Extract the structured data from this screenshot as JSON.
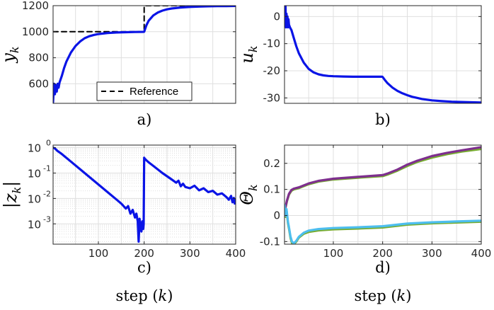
{
  "chart_data": [
    {
      "id": "a",
      "type": "line",
      "caption": "a)",
      "ylabel": "y",
      "ylabel_sub": "k",
      "xlim": [
        1,
        400
      ],
      "ylim": [
        450,
        1200
      ],
      "yscale": "linear",
      "xticks": [],
      "yticks": [
        600,
        800,
        1000,
        1200
      ],
      "ytick_labels": [
        "600",
        "800",
        "1000",
        "1200"
      ],
      "grid": true,
      "legend": {
        "position": "bottom-center",
        "entries": [
          "Reference"
        ]
      },
      "series": [
        {
          "name": "Reference",
          "style": "dashed",
          "color": "#000000",
          "x": [
            1,
            200,
            200,
            400
          ],
          "y": [
            1000,
            1000,
            1200,
            1200
          ]
        },
        {
          "name": "y_k",
          "style": "solid",
          "color": "#0a14e6",
          "x": [
            1,
            3,
            5,
            7,
            9,
            11,
            13,
            15,
            20,
            25,
            30,
            40,
            50,
            60,
            70,
            80,
            90,
            100,
            120,
            140,
            160,
            180,
            199,
            200,
            205,
            210,
            220,
            230,
            240,
            250,
            260,
            280,
            300,
            320,
            340,
            360,
            380,
            400
          ],
          "y": [
            460,
            600,
            520,
            590,
            540,
            600,
            570,
            610,
            660,
            720,
            770,
            840,
            890,
            925,
            950,
            965,
            975,
            982,
            990,
            994,
            996,
            998,
            999,
            1000,
            1050,
            1085,
            1125,
            1148,
            1162,
            1172,
            1178,
            1186,
            1190,
            1193,
            1195,
            1196,
            1197,
            1198
          ]
        }
      ]
    },
    {
      "id": "b",
      "type": "line",
      "caption": "b)",
      "ylabel": "u",
      "ylabel_sub": "k",
      "xlim": [
        1,
        400
      ],
      "ylim": [
        -32,
        4
      ],
      "yscale": "linear",
      "xticks": [],
      "yticks": [
        -30,
        -20,
        -10,
        0
      ],
      "ytick_labels": [
        "-30",
        "-20",
        "-10",
        "0"
      ],
      "grid": true,
      "series": [
        {
          "name": "u_k",
          "style": "solid",
          "color": "#0a14e6",
          "x": [
            1,
            2,
            3,
            4,
            5,
            6,
            7,
            8,
            9,
            10,
            12,
            15,
            20,
            25,
            30,
            40,
            50,
            60,
            70,
            80,
            90,
            100,
            120,
            140,
            160,
            180,
            199,
            200,
            205,
            210,
            220,
            230,
            240,
            250,
            260,
            270,
            280,
            300,
            320,
            340,
            360,
            380,
            400
          ],
          "y": [
            3,
            -2,
            4,
            -4,
            1,
            -3,
            0,
            -4,
            -1,
            -3,
            -4,
            -5,
            -8,
            -11,
            -13.5,
            -17,
            -19.3,
            -20.6,
            -21.3,
            -21.7,
            -21.9,
            -22.0,
            -22.1,
            -22.2,
            -22.2,
            -22.2,
            -22.2,
            -22.3,
            -23.5,
            -24.6,
            -26.2,
            -27.4,
            -28.3,
            -29,
            -29.6,
            -30.0,
            -30.4,
            -30.9,
            -31.2,
            -31.4,
            -31.5,
            -31.6,
            -31.7
          ]
        }
      ]
    },
    {
      "id": "c",
      "type": "line",
      "caption": "c)",
      "ylabel": "|z",
      "ylabel_sub": "k",
      "ylabel_post": "|",
      "xlabel": "step",
      "xlabel_var": "k",
      "xlim": [
        1,
        400
      ],
      "ylim_log10": [
        -3.8,
        0.1
      ],
      "yscale": "log",
      "xticks": [
        100,
        200,
        300,
        400
      ],
      "xtick_labels": [
        "100",
        "200",
        "300",
        "400"
      ],
      "yticks_log10": [
        -3,
        -2,
        -1,
        0
      ],
      "ytick_labels": [
        "10",
        "10",
        "10",
        "10"
      ],
      "ytick_exponents": [
        "-3",
        "-2",
        "-1",
        "0"
      ],
      "grid": true,
      "series": [
        {
          "name": "|z_k|",
          "style": "solid",
          "color": "#0a14e6",
          "x": [
            1,
            5,
            10,
            20,
            40,
            60,
            80,
            100,
            120,
            140,
            150,
            160,
            165,
            170,
            175,
            180,
            183,
            186,
            188,
            190,
            192,
            194,
            196,
            198,
            199,
            200,
            202,
            205,
            210,
            220,
            240,
            260,
            270,
            275,
            280,
            285,
            290,
            300,
            310,
            320,
            330,
            340,
            350,
            360,
            370,
            380,
            385,
            390,
            393,
            396,
            398,
            400
          ],
          "y_log10": [
            0,
            -0.03,
            -0.12,
            -0.25,
            -0.55,
            -0.85,
            -1.15,
            -1.45,
            -1.75,
            -2.05,
            -2.2,
            -2.4,
            -2.3,
            -2.6,
            -2.45,
            -2.75,
            -2.6,
            -2.9,
            -3.7,
            -2.8,
            -3.1,
            -3.3,
            -2.9,
            -3.2,
            -3.0,
            -0.4,
            -0.45,
            -0.5,
            -0.58,
            -0.72,
            -1.0,
            -1.25,
            -1.38,
            -1.3,
            -1.52,
            -1.42,
            -1.55,
            -1.6,
            -1.5,
            -1.68,
            -1.6,
            -1.75,
            -1.7,
            -1.85,
            -1.8,
            -1.95,
            -2.05,
            -1.9,
            -2.15,
            -1.98,
            -2.2,
            -2.05
          ]
        }
      ]
    },
    {
      "id": "d",
      "type": "line",
      "caption": "d)",
      "ylabel": "Θ",
      "ylabel_sub": "k",
      "xlabel": "step",
      "xlabel_var": "k",
      "xlim": [
        1,
        400
      ],
      "ylim": [
        -0.11,
        0.27
      ],
      "yscale": "linear",
      "xticks": [
        100,
        200,
        300,
        400
      ],
      "xtick_labels": [
        "100",
        "200",
        "300",
        "400"
      ],
      "yticks": [
        -0.1,
        0,
        0.1,
        0.2
      ],
      "ytick_labels": [
        "-0.1",
        "0",
        "0.1",
        "0.2"
      ],
      "grid": true,
      "series": [
        {
          "name": "theta-upper-1",
          "style": "solid",
          "color": "#77ac30",
          "x": [
            1,
            3,
            6,
            10,
            15,
            20,
            30,
            50,
            70,
            100,
            150,
            200,
            210,
            230,
            250,
            270,
            300,
            330,
            360,
            400
          ],
          "y": [
            0,
            0.03,
            0.055,
            0.08,
            0.095,
            0.1,
            0.105,
            0.12,
            0.13,
            0.138,
            0.145,
            0.151,
            0.157,
            0.172,
            0.19,
            0.205,
            0.222,
            0.235,
            0.245,
            0.255
          ]
        },
        {
          "name": "theta-upper-2",
          "style": "solid",
          "color": "#7e2f8e",
          "x": [
            1,
            3,
            6,
            10,
            15,
            20,
            30,
            50,
            70,
            100,
            150,
            200,
            210,
            230,
            250,
            270,
            300,
            330,
            360,
            400
          ],
          "y": [
            0,
            0.032,
            0.058,
            0.083,
            0.098,
            0.103,
            0.108,
            0.123,
            0.133,
            0.141,
            0.148,
            0.155,
            0.161,
            0.176,
            0.195,
            0.21,
            0.228,
            0.24,
            0.25,
            0.262
          ]
        },
        {
          "name": "theta-lower-1",
          "style": "solid",
          "color": "#77ac30",
          "x": [
            1,
            3,
            5,
            8,
            10,
            13,
            16,
            20,
            25,
            30,
            40,
            50,
            70,
            100,
            150,
            200,
            250,
            300,
            350,
            400
          ],
          "y": [
            0.03,
            -0.005,
            0.02,
            -0.03,
            -0.05,
            -0.085,
            -0.105,
            -0.11,
            -0.1,
            -0.085,
            -0.07,
            -0.063,
            -0.057,
            -0.053,
            -0.05,
            -0.046,
            -0.035,
            -0.03,
            -0.027,
            -0.024
          ]
        },
        {
          "name": "theta-lower-2",
          "style": "solid",
          "color": "#4dbeee",
          "x": [
            1,
            3,
            5,
            8,
            10,
            13,
            16,
            20,
            25,
            30,
            40,
            50,
            70,
            100,
            150,
            200,
            250,
            300,
            350,
            400
          ],
          "y": [
            0.04,
            0.0,
            0.025,
            -0.025,
            -0.045,
            -0.08,
            -0.1,
            -0.107,
            -0.097,
            -0.082,
            -0.066,
            -0.058,
            -0.052,
            -0.048,
            -0.045,
            -0.041,
            -0.031,
            -0.026,
            -0.023,
            -0.02
          ]
        }
      ]
    }
  ]
}
